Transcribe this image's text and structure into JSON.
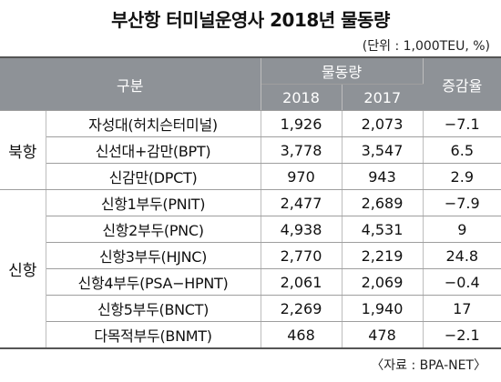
{
  "title": "부산항 터미널운영사 2018년 물동량",
  "unit": "(단위 : 1,000TEU, %)",
  "source": "〈자료 : BPA-NET〉",
  "header": {
    "category": "구분",
    "volume": "물동량",
    "year1": "2018",
    "year2": "2017",
    "change": "증감율"
  },
  "groups": [
    {
      "name": "북항",
      "rows": [
        {
          "terminal": "자성대(허치슨터미널)",
          "y2018": "1,926",
          "y2017": "2,073",
          "change": "−7.1"
        },
        {
          "terminal": "신선대+감만(BPT)",
          "y2018": "3,778",
          "y2017": "3,547",
          "change": "6.5"
        },
        {
          "terminal": "신감만(DPCT)",
          "y2018": "970",
          "y2017": "943",
          "change": "2.9"
        }
      ]
    },
    {
      "name": "신항",
      "rows": [
        {
          "terminal": "신항1부두(PNIT)",
          "y2018": "2,477",
          "y2017": "2,689",
          "change": "−7.9"
        },
        {
          "terminal": "신항2부두(PNC)",
          "y2018": "4,938",
          "y2017": "4,531",
          "change": "9"
        },
        {
          "terminal": "신항3부두(HJNC)",
          "y2018": "2,770",
          "y2017": "2,219",
          "change": "24.8"
        },
        {
          "terminal": "신항4부두(PSA−HPNT)",
          "y2018": "2,061",
          "y2017": "2,069",
          "change": "−0.4"
        },
        {
          "terminal": "신항5부두(BNCT)",
          "y2018": "2,269",
          "y2017": "1,940",
          "change": "17"
        },
        {
          "terminal": "다목적부두(BNMT)",
          "y2018": "468",
          "y2017": "478",
          "change": "−2.1"
        }
      ]
    }
  ]
}
